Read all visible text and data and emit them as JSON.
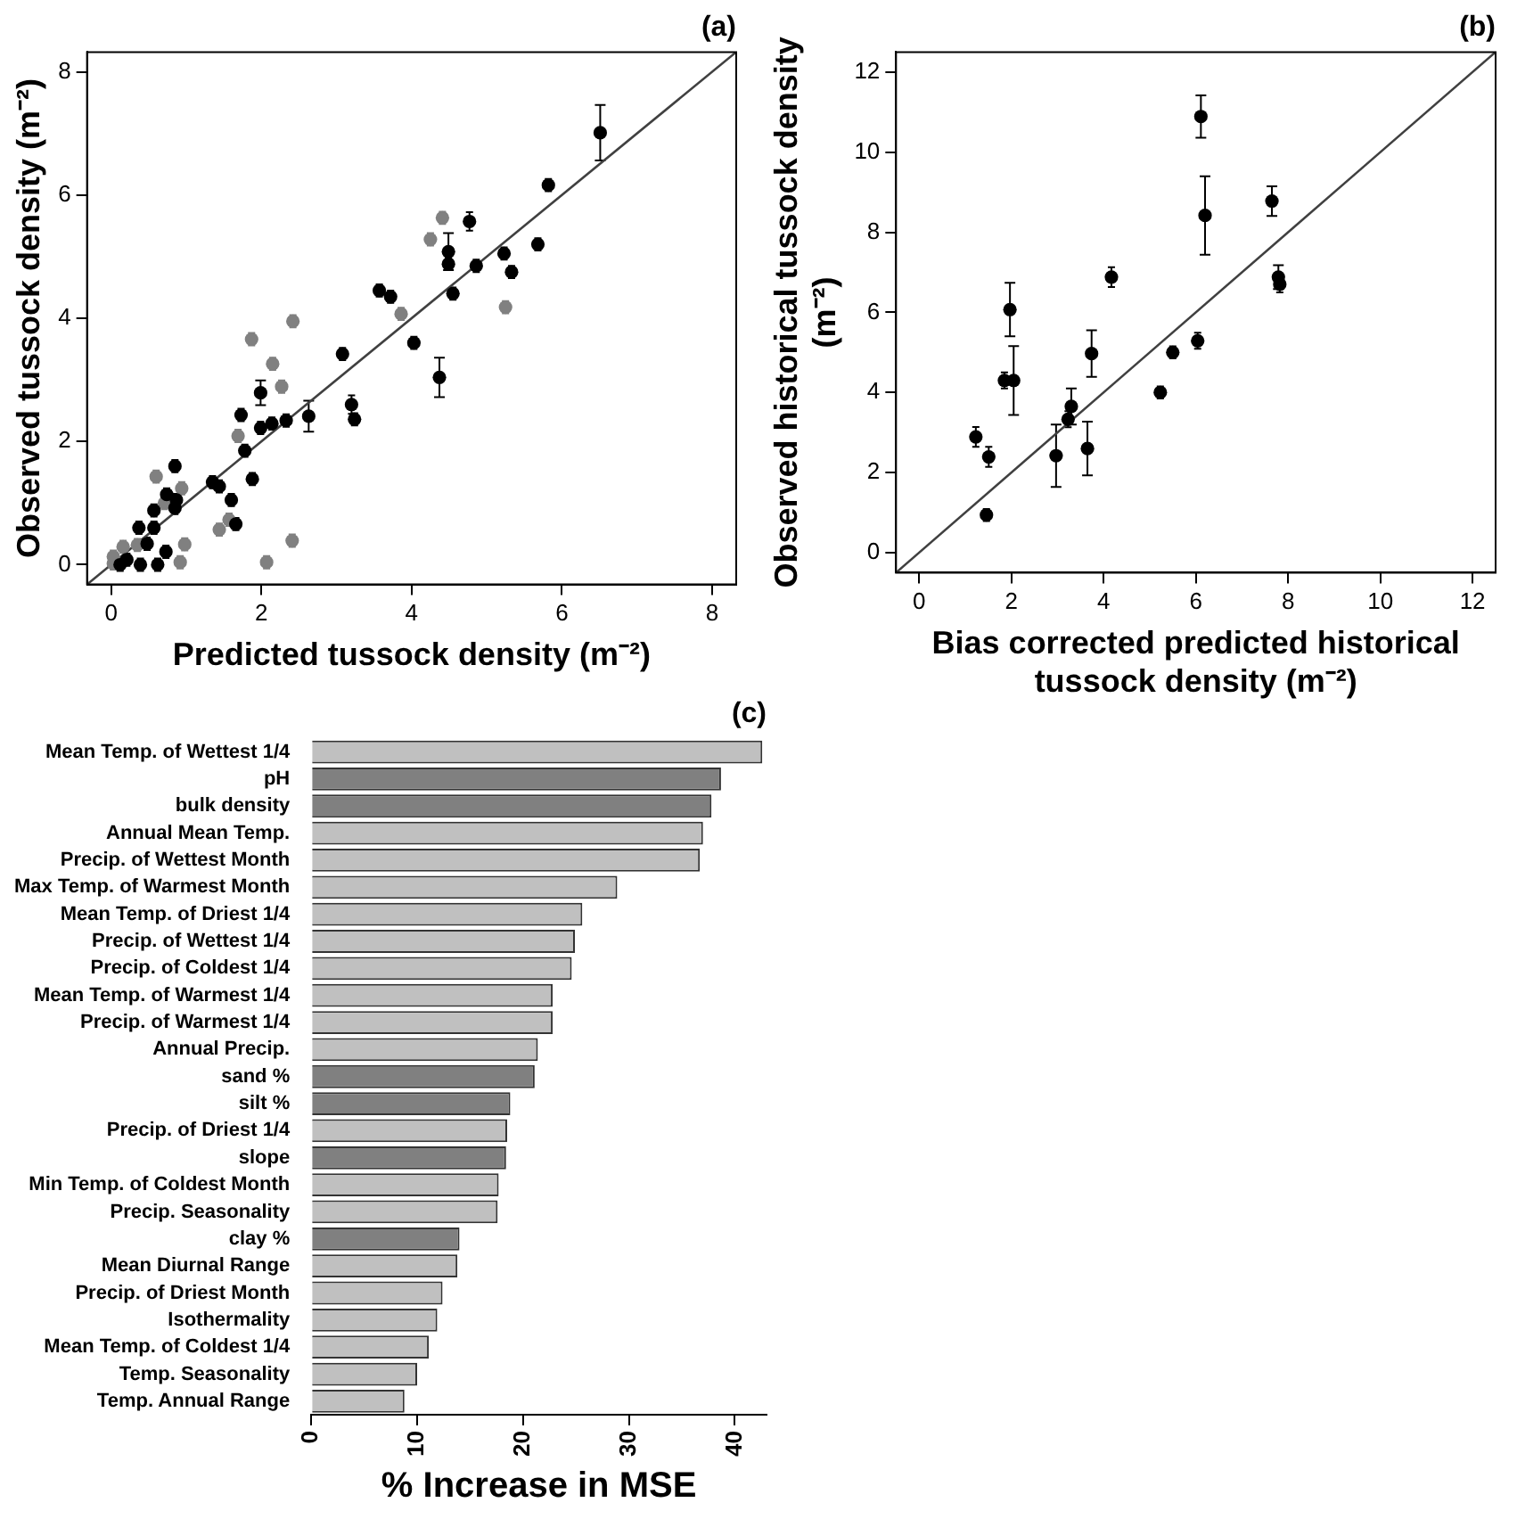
{
  "chart_data": [
    {
      "type": "scatter",
      "title": "(a)",
      "xlabel": "Predicted tussock density (m⁻²)",
      "ylabel": "Observed tussock density (m⁻²)",
      "xlim": [
        -0.32,
        8.32
      ],
      "ylim": [
        -0.32,
        8.32
      ],
      "xticks": [
        0,
        2,
        4,
        6,
        8
      ],
      "yticks": [
        0,
        2,
        4,
        6,
        8
      ],
      "marker": "circle",
      "legend": false,
      "series": [
        {
          "color": "#000000",
          "x": [
            6.51,
            5.82,
            4.77,
            4.49,
            4.49,
            4.55,
            4.86,
            5.23,
            5.33,
            5.68,
            3.57,
            3.72,
            4.03,
            4.37,
            3.08,
            3.2,
            3.24,
            2.63,
            2.33,
            1.99,
            2.14,
            1.99,
            1.73,
            1.78,
            1.88,
            0.85,
            1.35,
            1.44,
            1.6,
            1.66,
            0.85,
            0.87,
            0.57,
            0.74,
            0.37,
            0.57,
            0.48,
            0.73,
            0.21,
            0.39,
            0.62,
            0.12
          ],
          "values": [
            7.01,
            6.16,
            5.57,
            5.08,
            4.88,
            4.4,
            4.85,
            5.05,
            4.75,
            5.2,
            4.45,
            4.35,
            3.6,
            3.04,
            3.42,
            2.6,
            2.36,
            2.41,
            2.34,
            2.79,
            2.29,
            2.22,
            2.43,
            1.85,
            1.39,
            1.6,
            1.34,
            1.27,
            1.05,
            0.66,
            0.92,
            1.05,
            0.88,
            1.14,
            0.6,
            0.6,
            0.34,
            0.21,
            0.08,
            0.0,
            0.0,
            0.0
          ],
          "errors": [
            0.45,
            0.1,
            0.15,
            0.3,
            0.1,
            0.1,
            0.1,
            0.1,
            0.1,
            0.1,
            0.1,
            0.1,
            0.1,
            0.32,
            0.1,
            0.15,
            0.1,
            0.25,
            0.1,
            0.2,
            0.1,
            0.1,
            0.1,
            0.1,
            0.1,
            0.1,
            0.1,
            0.1,
            0.1,
            0.1,
            0.1,
            0.1,
            0.1,
            0.1,
            0.1,
            0.1,
            0.1,
            0.1,
            0.1,
            0.1,
            0.1,
            0.1
          ]
        },
        {
          "color": "#808080",
          "x": [
            4.41,
            4.25,
            3.86,
            5.25,
            2.42,
            1.87,
            2.15,
            2.27,
            1.69,
            0.6,
            0.94,
            0.71,
            1.44,
            1.57,
            2.41,
            2.07,
            0.98,
            0.92,
            0.35,
            0.16,
            0.03,
            0.03
          ],
          "values": [
            5.63,
            5.28,
            4.07,
            4.18,
            3.95,
            3.66,
            3.26,
            2.89,
            2.09,
            1.43,
            1.24,
            1.0,
            0.57,
            0.73,
            0.39,
            0.04,
            0.33,
            0.04,
            0.32,
            0.29,
            0.13,
            0.02
          ],
          "errors": [
            0.1,
            0.1,
            0.1,
            0.1,
            0.1,
            0.1,
            0.1,
            0.1,
            0.1,
            0.1,
            0.1,
            0.1,
            0.1,
            0.1,
            0.1,
            0.1,
            0.1,
            0.1,
            0.1,
            0.1,
            0.1,
            0.1
          ]
        },
        {
          "type": "line",
          "color": "#404040",
          "marker": "none",
          "x": [
            -0.32,
            8.32
          ],
          "values": [
            -0.32,
            8.32
          ]
        }
      ]
    },
    {
      "type": "scatter",
      "title": "(b)",
      "xlabel": "Bias corrected predicted historical tussock density (m⁻²)",
      "ylabel": "Observed historical tussock density (m⁻²)",
      "xlim": [
        -0.5,
        12.5
      ],
      "ylim": [
        -0.5,
        12.5
      ],
      "xticks": [
        0,
        2,
        4,
        6,
        8,
        10,
        12
      ],
      "yticks": [
        0,
        2,
        4,
        6,
        8,
        10,
        12
      ],
      "marker": "circle",
      "legend": false,
      "series": [
        {
          "color": "#000000",
          "x": [
            6.11,
            6.2,
            7.65,
            7.79,
            7.82,
            4.17,
            1.97,
            1.85,
            2.05,
            3.74,
            5.5,
            6.04,
            5.23,
            3.3,
            3.23,
            2.97,
            3.65,
            1.23,
            1.51,
            1.46
          ],
          "values": [
            10.89,
            8.42,
            8.78,
            6.88,
            6.7,
            6.88,
            6.07,
            4.3,
            4.3,
            4.97,
            5.0,
            5.29,
            4.0,
            3.65,
            3.33,
            2.42,
            2.6,
            2.89,
            2.39,
            0.94
          ],
          "errors": [
            0.53,
            0.98,
            0.37,
            0.3,
            0.2,
            0.25,
            0.67,
            0.2,
            0.86,
            0.58,
            0.15,
            0.2,
            0.15,
            0.45,
            0.2,
            0.78,
            0.67,
            0.25,
            0.25,
            0.15
          ]
        },
        {
          "type": "line",
          "color": "#404040",
          "marker": "none",
          "x": [
            -0.5,
            12.5
          ],
          "values": [
            -0.5,
            12.5
          ]
        }
      ]
    },
    {
      "type": "bar",
      "orientation": "horizontal",
      "title": "(c)",
      "xlabel": "% Increase in MSE",
      "xlim": [
        0,
        43
      ],
      "xticks": [
        0,
        10,
        20,
        30,
        40
      ],
      "legend": false,
      "categories": [
        "Mean Temp. of Wettest 1/4",
        "pH",
        "bulk density",
        "Annual Mean Temp.",
        "Precip. of Wettest Month",
        "Max Temp. of Warmest Month",
        "Mean Temp. of Driest 1/4",
        "Precip. of Wettest 1/4",
        "Precip. of Coldest 1/4",
        "Mean Temp. of Warmest 1/4",
        "Precip. of Warmest 1/4",
        "Annual Precip.",
        "sand %",
        "silt %",
        "Precip. of Driest 1/4",
        "slope",
        "Min Temp. of Coldest Month",
        "Precip. Seasonality",
        "clay %",
        "Mean Diurnal Range",
        "Precip. of Driest Month",
        "Isothermality",
        "Mean Temp. of Coldest 1/4",
        "Temp. Seasonality",
        "Temp. Annual Range"
      ],
      "values": [
        42.6,
        38.7,
        37.8,
        37.0,
        36.7,
        28.9,
        25.6,
        24.9,
        24.6,
        22.8,
        22.8,
        21.4,
        21.1,
        18.8,
        18.5,
        18.4,
        17.7,
        17.6,
        14.0,
        13.8,
        12.4,
        11.9,
        11.1,
        10.0,
        8.8
      ],
      "colors": [
        "#c0c0c0",
        "#808080",
        "#808080",
        "#c0c0c0",
        "#c0c0c0",
        "#c0c0c0",
        "#c0c0c0",
        "#c0c0c0",
        "#c0c0c0",
        "#c0c0c0",
        "#c0c0c0",
        "#c0c0c0",
        "#808080",
        "#808080",
        "#c0c0c0",
        "#808080",
        "#c0c0c0",
        "#c0c0c0",
        "#808080",
        "#c0c0c0",
        "#c0c0c0",
        "#c0c0c0",
        "#c0c0c0",
        "#c0c0c0",
        "#c0c0c0"
      ]
    }
  ]
}
